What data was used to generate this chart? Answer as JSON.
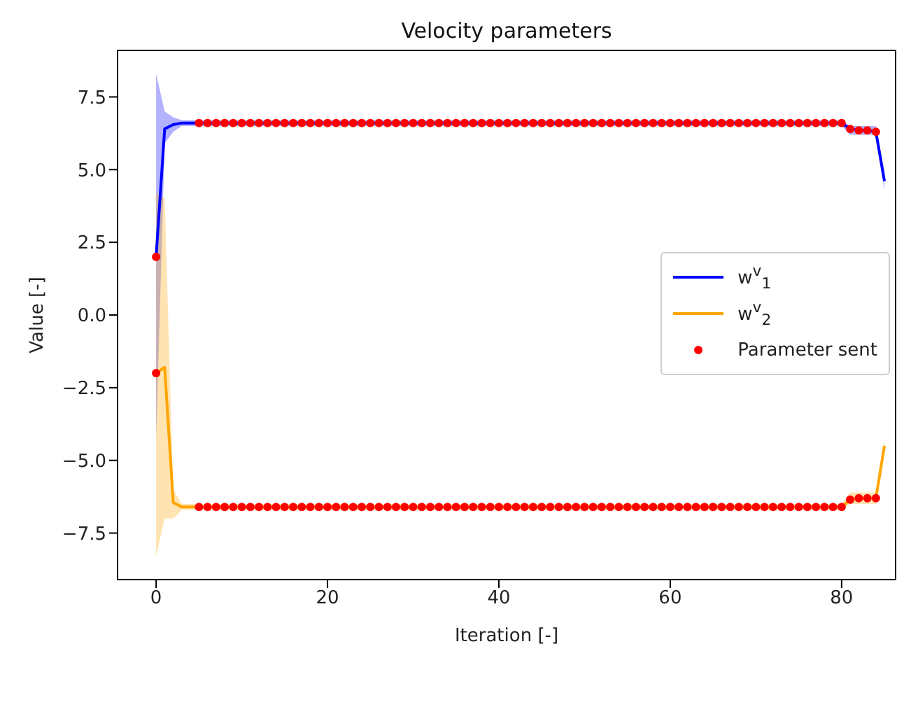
{
  "chart_data": {
    "type": "line",
    "title": "Velocity parameters",
    "xlabel": "Iteration [-]",
    "ylabel": "Value [-]",
    "x": [
      0,
      1,
      2,
      3,
      4,
      5,
      6,
      7,
      8,
      9,
      10,
      11,
      12,
      13,
      14,
      15,
      16,
      17,
      18,
      19,
      20,
      21,
      22,
      23,
      24,
      25,
      26,
      27,
      28,
      29,
      30,
      31,
      32,
      33,
      34,
      35,
      36,
      37,
      38,
      39,
      40,
      41,
      42,
      43,
      44,
      45,
      46,
      47,
      48,
      49,
      50,
      51,
      52,
      53,
      54,
      55,
      56,
      57,
      58,
      59,
      60,
      61,
      62,
      63,
      64,
      65,
      66,
      67,
      68,
      69,
      70,
      71,
      72,
      73,
      74,
      75,
      76,
      77,
      78,
      79,
      80,
      81,
      82,
      83,
      84,
      85
    ],
    "series": [
      {
        "name": "w$^{v}$$_{1}$",
        "type": "line",
        "color": "#0000ff",
        "values": [
          2.0,
          6.4,
          6.55,
          6.6,
          6.6,
          6.6,
          6.6,
          6.6,
          6.6,
          6.6,
          6.6,
          6.6,
          6.6,
          6.6,
          6.6,
          6.6,
          6.6,
          6.6,
          6.6,
          6.6,
          6.6,
          6.6,
          6.6,
          6.6,
          6.6,
          6.6,
          6.6,
          6.6,
          6.6,
          6.6,
          6.6,
          6.6,
          6.6,
          6.6,
          6.6,
          6.6,
          6.6,
          6.6,
          6.6,
          6.6,
          6.6,
          6.6,
          6.6,
          6.6,
          6.6,
          6.6,
          6.6,
          6.6,
          6.6,
          6.6,
          6.6,
          6.6,
          6.6,
          6.6,
          6.6,
          6.6,
          6.6,
          6.6,
          6.6,
          6.6,
          6.6,
          6.6,
          6.6,
          6.6,
          6.6,
          6.6,
          6.6,
          6.6,
          6.6,
          6.6,
          6.6,
          6.6,
          6.6,
          6.6,
          6.6,
          6.6,
          6.6,
          6.6,
          6.6,
          6.6,
          6.6,
          6.4,
          6.35,
          6.35,
          6.3,
          4.6
        ],
        "lower": [
          -4.3,
          5.9,
          6.3,
          6.5,
          6.5,
          6.5,
          6.5,
          6.5,
          6.5,
          6.5,
          6.5,
          6.5,
          6.5,
          6.5,
          6.5,
          6.5,
          6.5,
          6.5,
          6.5,
          6.5,
          6.5,
          6.5,
          6.5,
          6.5,
          6.5,
          6.5,
          6.5,
          6.5,
          6.5,
          6.5,
          6.5,
          6.5,
          6.5,
          6.5,
          6.5,
          6.5,
          6.5,
          6.5,
          6.5,
          6.5,
          6.5,
          6.5,
          6.5,
          6.5,
          6.5,
          6.5,
          6.5,
          6.5,
          6.5,
          6.5,
          6.5,
          6.5,
          6.5,
          6.5,
          6.5,
          6.5,
          6.5,
          6.5,
          6.5,
          6.5,
          6.5,
          6.5,
          6.5,
          6.5,
          6.5,
          6.5,
          6.5,
          6.5,
          6.5,
          6.5,
          6.5,
          6.5,
          6.5,
          6.5,
          6.5,
          6.5,
          6.5,
          6.5,
          6.5,
          6.5,
          6.5,
          6.2,
          6.2,
          6.2,
          6.2,
          4.3
        ],
        "upper": [
          8.3,
          7.0,
          6.8,
          6.7,
          6.7,
          6.7,
          6.7,
          6.7,
          6.7,
          6.7,
          6.7,
          6.7,
          6.7,
          6.7,
          6.7,
          6.7,
          6.7,
          6.7,
          6.7,
          6.7,
          6.7,
          6.7,
          6.7,
          6.7,
          6.7,
          6.7,
          6.7,
          6.7,
          6.7,
          6.7,
          6.7,
          6.7,
          6.7,
          6.7,
          6.7,
          6.7,
          6.7,
          6.7,
          6.7,
          6.7,
          6.7,
          6.7,
          6.7,
          6.7,
          6.7,
          6.7,
          6.7,
          6.7,
          6.7,
          6.7,
          6.7,
          6.7,
          6.7,
          6.7,
          6.7,
          6.7,
          6.7,
          6.7,
          6.7,
          6.7,
          6.7,
          6.7,
          6.7,
          6.7,
          6.7,
          6.7,
          6.7,
          6.7,
          6.7,
          6.7,
          6.7,
          6.7,
          6.7,
          6.7,
          6.7,
          6.7,
          6.7,
          6.7,
          6.7,
          6.7,
          6.7,
          6.5,
          6.5,
          6.5,
          6.5,
          4.9
        ]
      },
      {
        "name": "w$^{v}$$_{2}$",
        "type": "line",
        "color": "#ffa500",
        "values": [
          -2.0,
          -1.8,
          -6.45,
          -6.6,
          -6.6,
          -6.6,
          -6.6,
          -6.6,
          -6.6,
          -6.6,
          -6.6,
          -6.6,
          -6.6,
          -6.6,
          -6.6,
          -6.6,
          -6.6,
          -6.6,
          -6.6,
          -6.6,
          -6.6,
          -6.6,
          -6.6,
          -6.6,
          -6.6,
          -6.6,
          -6.6,
          -6.6,
          -6.6,
          -6.6,
          -6.6,
          -6.6,
          -6.6,
          -6.6,
          -6.6,
          -6.6,
          -6.6,
          -6.6,
          -6.6,
          -6.6,
          -6.6,
          -6.6,
          -6.6,
          -6.6,
          -6.6,
          -6.6,
          -6.6,
          -6.6,
          -6.6,
          -6.6,
          -6.6,
          -6.6,
          -6.6,
          -6.6,
          -6.6,
          -6.6,
          -6.6,
          -6.6,
          -6.6,
          -6.6,
          -6.6,
          -6.6,
          -6.6,
          -6.6,
          -6.6,
          -6.6,
          -6.6,
          -6.6,
          -6.6,
          -6.6,
          -6.6,
          -6.6,
          -6.6,
          -6.6,
          -6.6,
          -6.6,
          -6.6,
          -6.6,
          -6.6,
          -6.6,
          -6.6,
          -6.35,
          -6.3,
          -6.3,
          -6.3,
          -4.5
        ],
        "lower": [
          -8.3,
          -7.0,
          -7.0,
          -6.7,
          -6.7,
          -6.7,
          -6.7,
          -6.7,
          -6.7,
          -6.7,
          -6.7,
          -6.7,
          -6.7,
          -6.7,
          -6.7,
          -6.7,
          -6.7,
          -6.7,
          -6.7,
          -6.7,
          -6.7,
          -6.7,
          -6.7,
          -6.7,
          -6.7,
          -6.7,
          -6.7,
          -6.7,
          -6.7,
          -6.7,
          -6.7,
          -6.7,
          -6.7,
          -6.7,
          -6.7,
          -6.7,
          -6.7,
          -6.7,
          -6.7,
          -6.7,
          -6.7,
          -6.7,
          -6.7,
          -6.7,
          -6.7,
          -6.7,
          -6.7,
          -6.7,
          -6.7,
          -6.7,
          -6.7,
          -6.7,
          -6.7,
          -6.7,
          -6.7,
          -6.7,
          -6.7,
          -6.7,
          -6.7,
          -6.7,
          -6.7,
          -6.7,
          -6.7,
          -6.7,
          -6.7,
          -6.7,
          -6.7,
          -6.7,
          -6.7,
          -6.7,
          -6.7,
          -6.7,
          -6.7,
          -6.7,
          -6.7,
          -6.7,
          -6.7,
          -6.7,
          -6.7,
          -6.7,
          -6.7,
          -6.5,
          -6.5,
          -6.5,
          -6.5,
          -4.7
        ],
        "upper": [
          4.2,
          4.0,
          -6.0,
          -6.5,
          -6.5,
          -6.5,
          -6.5,
          -6.5,
          -6.5,
          -6.5,
          -6.5,
          -6.5,
          -6.5,
          -6.5,
          -6.5,
          -6.5,
          -6.5,
          -6.5,
          -6.5,
          -6.5,
          -6.5,
          -6.5,
          -6.5,
          -6.5,
          -6.5,
          -6.5,
          -6.5,
          -6.5,
          -6.5,
          -6.5,
          -6.5,
          -6.5,
          -6.5,
          -6.5,
          -6.5,
          -6.5,
          -6.5,
          -6.5,
          -6.5,
          -6.5,
          -6.5,
          -6.5,
          -6.5,
          -6.5,
          -6.5,
          -6.5,
          -6.5,
          -6.5,
          -6.5,
          -6.5,
          -6.5,
          -6.5,
          -6.5,
          -6.5,
          -6.5,
          -6.5,
          -6.5,
          -6.5,
          -6.5,
          -6.5,
          -6.5,
          -6.5,
          -6.5,
          -6.5,
          -6.5,
          -6.5,
          -6.5,
          -6.5,
          -6.5,
          -6.5,
          -6.5,
          -6.5,
          -6.5,
          -6.5,
          -6.5,
          -6.5,
          -6.5,
          -6.5,
          -6.5,
          -6.5,
          -6.5,
          -6.1,
          -6.1,
          -6.1,
          -6.1,
          -4.3
        ]
      },
      {
        "name": "Parameter sent",
        "type": "scatter",
        "color": "#ff0000",
        "marker": "circle",
        "x": [
          0,
          5,
          6,
          7,
          8,
          9,
          10,
          11,
          12,
          13,
          14,
          15,
          16,
          17,
          18,
          19,
          20,
          21,
          22,
          23,
          24,
          25,
          26,
          27,
          28,
          29,
          30,
          31,
          32,
          33,
          34,
          35,
          36,
          37,
          38,
          39,
          40,
          41,
          42,
          43,
          44,
          45,
          46,
          47,
          48,
          49,
          50,
          51,
          52,
          53,
          54,
          55,
          56,
          57,
          58,
          59,
          60,
          61,
          62,
          63,
          64,
          65,
          66,
          67,
          68,
          69,
          70,
          71,
          72,
          73,
          74,
          75,
          76,
          77,
          78,
          79,
          80,
          81,
          82,
          83,
          84,
          0,
          5,
          6,
          7,
          8,
          9,
          10,
          11,
          12,
          13,
          14,
          15,
          16,
          17,
          18,
          19,
          20,
          21,
          22,
          23,
          24,
          25,
          26,
          27,
          28,
          29,
          30,
          31,
          32,
          33,
          34,
          35,
          36,
          37,
          38,
          39,
          40,
          41,
          42,
          43,
          44,
          45,
          46,
          47,
          48,
          49,
          50,
          51,
          52,
          53,
          54,
          55,
          56,
          57,
          58,
          59,
          60,
          61,
          62,
          63,
          64,
          65,
          66,
          67,
          68,
          69,
          70,
          71,
          72,
          73,
          74,
          75,
          76,
          77,
          78,
          79,
          80,
          81,
          82,
          83,
          84
        ],
        "values": [
          2.0,
          6.6,
          6.6,
          6.6,
          6.6,
          6.6,
          6.6,
          6.6,
          6.6,
          6.6,
          6.6,
          6.6,
          6.6,
          6.6,
          6.6,
          6.6,
          6.6,
          6.6,
          6.6,
          6.6,
          6.6,
          6.6,
          6.6,
          6.6,
          6.6,
          6.6,
          6.6,
          6.6,
          6.6,
          6.6,
          6.6,
          6.6,
          6.6,
          6.6,
          6.6,
          6.6,
          6.6,
          6.6,
          6.6,
          6.6,
          6.6,
          6.6,
          6.6,
          6.6,
          6.6,
          6.6,
          6.6,
          6.6,
          6.6,
          6.6,
          6.6,
          6.6,
          6.6,
          6.6,
          6.6,
          6.6,
          6.6,
          6.6,
          6.6,
          6.6,
          6.6,
          6.6,
          6.6,
          6.6,
          6.6,
          6.6,
          6.6,
          6.6,
          6.6,
          6.6,
          6.6,
          6.6,
          6.6,
          6.6,
          6.6,
          6.6,
          6.6,
          6.4,
          6.35,
          6.35,
          6.3,
          -2.0,
          -6.6,
          -6.6,
          -6.6,
          -6.6,
          -6.6,
          -6.6,
          -6.6,
          -6.6,
          -6.6,
          -6.6,
          -6.6,
          -6.6,
          -6.6,
          -6.6,
          -6.6,
          -6.6,
          -6.6,
          -6.6,
          -6.6,
          -6.6,
          -6.6,
          -6.6,
          -6.6,
          -6.6,
          -6.6,
          -6.6,
          -6.6,
          -6.6,
          -6.6,
          -6.6,
          -6.6,
          -6.6,
          -6.6,
          -6.6,
          -6.6,
          -6.6,
          -6.6,
          -6.6,
          -6.6,
          -6.6,
          -6.6,
          -6.6,
          -6.6,
          -6.6,
          -6.6,
          -6.6,
          -6.6,
          -6.6,
          -6.6,
          -6.6,
          -6.6,
          -6.6,
          -6.6,
          -6.6,
          -6.6,
          -6.6,
          -6.6,
          -6.6,
          -6.6,
          -6.6,
          -6.6,
          -6.6,
          -6.6,
          -6.6,
          -6.6,
          -6.6,
          -6.6,
          -6.6,
          -6.6,
          -6.6,
          -6.6,
          -6.6,
          -6.6,
          -6.6,
          -6.6,
          -6.6,
          -6.35,
          -6.3,
          -6.3,
          -6.3
        ]
      }
    ],
    "xlim": [
      -4.5,
      86.3
    ],
    "xticks": [
      0,
      20,
      40,
      60,
      80
    ],
    "ylim": [
      -9.1,
      9.1
    ],
    "yticks": [
      {
        "value": -7.5,
        "label": "−7.5"
      },
      {
        "value": -5,
        "label": "−5.0"
      },
      {
        "value": -2.5,
        "label": "−2.5"
      },
      {
        "value": 0,
        "label": "0.0"
      },
      {
        "value": 2.5,
        "label": "2.5"
      },
      {
        "value": 5,
        "label": "5.0"
      },
      {
        "value": 7.5,
        "label": "7.5"
      }
    ],
    "grid": false,
    "legend": "right"
  }
}
